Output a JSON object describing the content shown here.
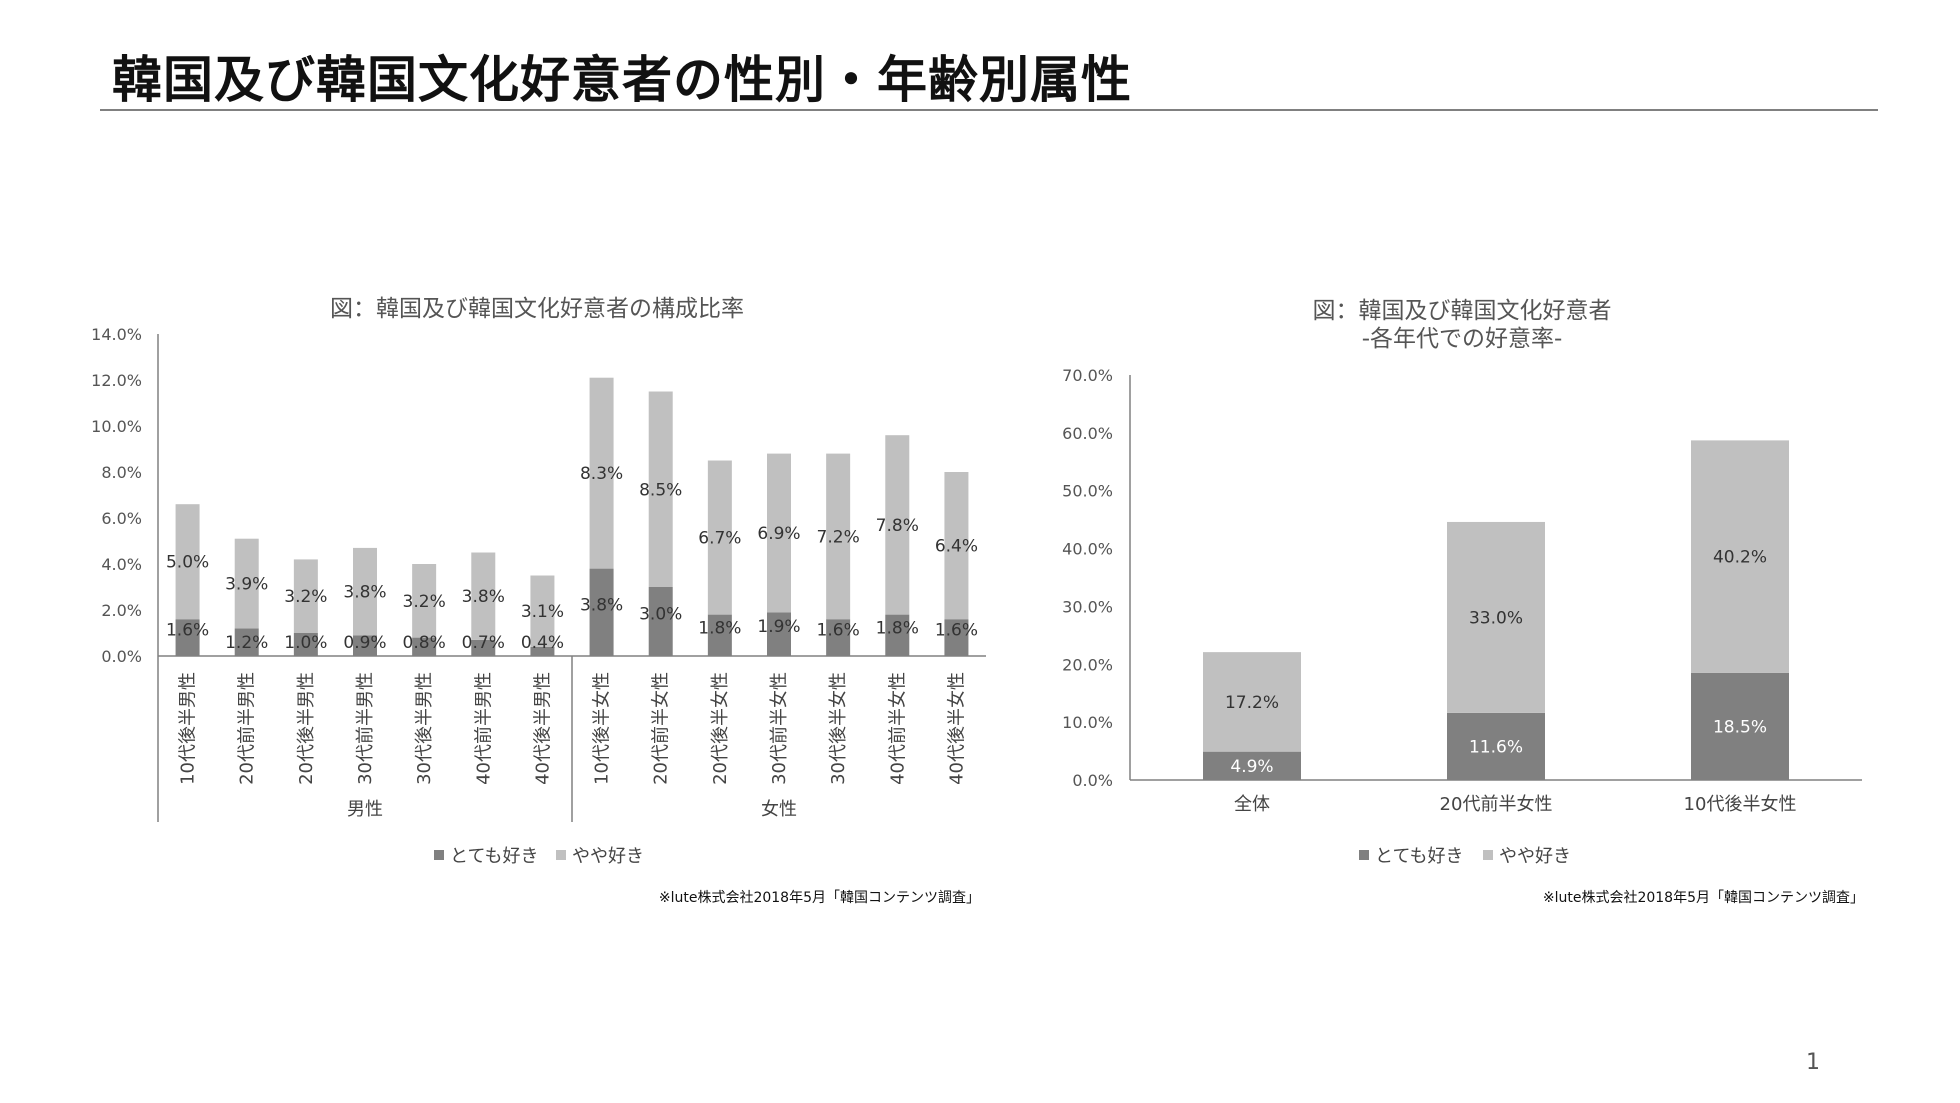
{
  "page": {
    "title": "韓国及び韓国文化好意者の性別・年齢別属性",
    "page_number": "1"
  },
  "colors": {
    "strong": "#808080",
    "light": "#c0c0c0",
    "axis": "#808080"
  },
  "legend": {
    "strong_label": "とても好き",
    "light_label": "やや好き"
  },
  "chart_data": [
    {
      "type": "bar",
      "stacked": true,
      "title": "図：韓国及び韓国文化好意者の構成比率",
      "categories": [
        "10代後半男性",
        "20代前半男性",
        "20代後半男性",
        "30代前半男性",
        "30代後半男性",
        "40代前半男性",
        "40代後半男性",
        "10代後半女性",
        "20代前半女性",
        "20代後半女性",
        "30代前半女性",
        "30代後半女性",
        "40代前半女性",
        "40代後半女性"
      ],
      "groups": [
        {
          "name": "男性",
          "count": 7
        },
        {
          "name": "女性",
          "count": 7
        }
      ],
      "series": [
        {
          "name": "とても好き",
          "values": [
            1.6,
            1.2,
            1.0,
            0.9,
            0.8,
            0.7,
            0.4,
            3.8,
            3.0,
            1.8,
            1.9,
            1.6,
            1.8,
            1.6
          ],
          "labels": [
            "1.6%",
            "1.2%",
            "1.0%",
            "0.9%",
            "0.8%",
            "0.7%",
            "0.4%",
            "3.8%",
            "3.0%",
            "1.8%",
            "1.9%",
            "1.6%",
            "1.8%",
            "1.6%"
          ]
        },
        {
          "name": "やや好き",
          "values": [
            5.0,
            3.9,
            3.2,
            3.8,
            3.2,
            3.8,
            3.1,
            8.3,
            8.5,
            6.7,
            6.9,
            7.2,
            7.8,
            6.4
          ],
          "labels": [
            "5.0%",
            "3.9%",
            "3.2%",
            "3.8%",
            "3.2%",
            "3.8%",
            "3.1%",
            "8.3%",
            "8.5%",
            "6.7%",
            "6.9%",
            "7.2%",
            "7.8%",
            "6.4%"
          ]
        }
      ],
      "ylim": [
        0,
        14
      ],
      "yticks": [
        "0.0%",
        "2.0%",
        "4.0%",
        "6.0%",
        "8.0%",
        "10.0%",
        "12.0%",
        "14.0%"
      ],
      "legend_position": "bottom",
      "grid": false,
      "source": "※lute株式会社2018年5月「韓国コンテンツ調査」"
    },
    {
      "type": "bar",
      "stacked": true,
      "title": "図：韓国及び韓国文化好意者",
      "subtitle": "-各年代での好意率-",
      "categories": [
        "全体",
        "20代前半女性",
        "10代後半女性"
      ],
      "series": [
        {
          "name": "とても好き",
          "values": [
            4.9,
            11.6,
            18.5
          ],
          "labels": [
            "4.9%",
            "11.6%",
            "18.5%"
          ]
        },
        {
          "name": "やや好き",
          "values": [
            17.2,
            33.0,
            40.2
          ],
          "labels": [
            "17.2%",
            "33.0%",
            "40.2%"
          ]
        }
      ],
      "ylim": [
        0,
        70
      ],
      "yticks": [
        "0.0%",
        "10.0%",
        "20.0%",
        "30.0%",
        "40.0%",
        "50.0%",
        "60.0%",
        "70.0%"
      ],
      "legend_position": "bottom",
      "grid": false,
      "source": "※lute株式会社2018年5月「韓国コンテンツ調査」"
    }
  ]
}
